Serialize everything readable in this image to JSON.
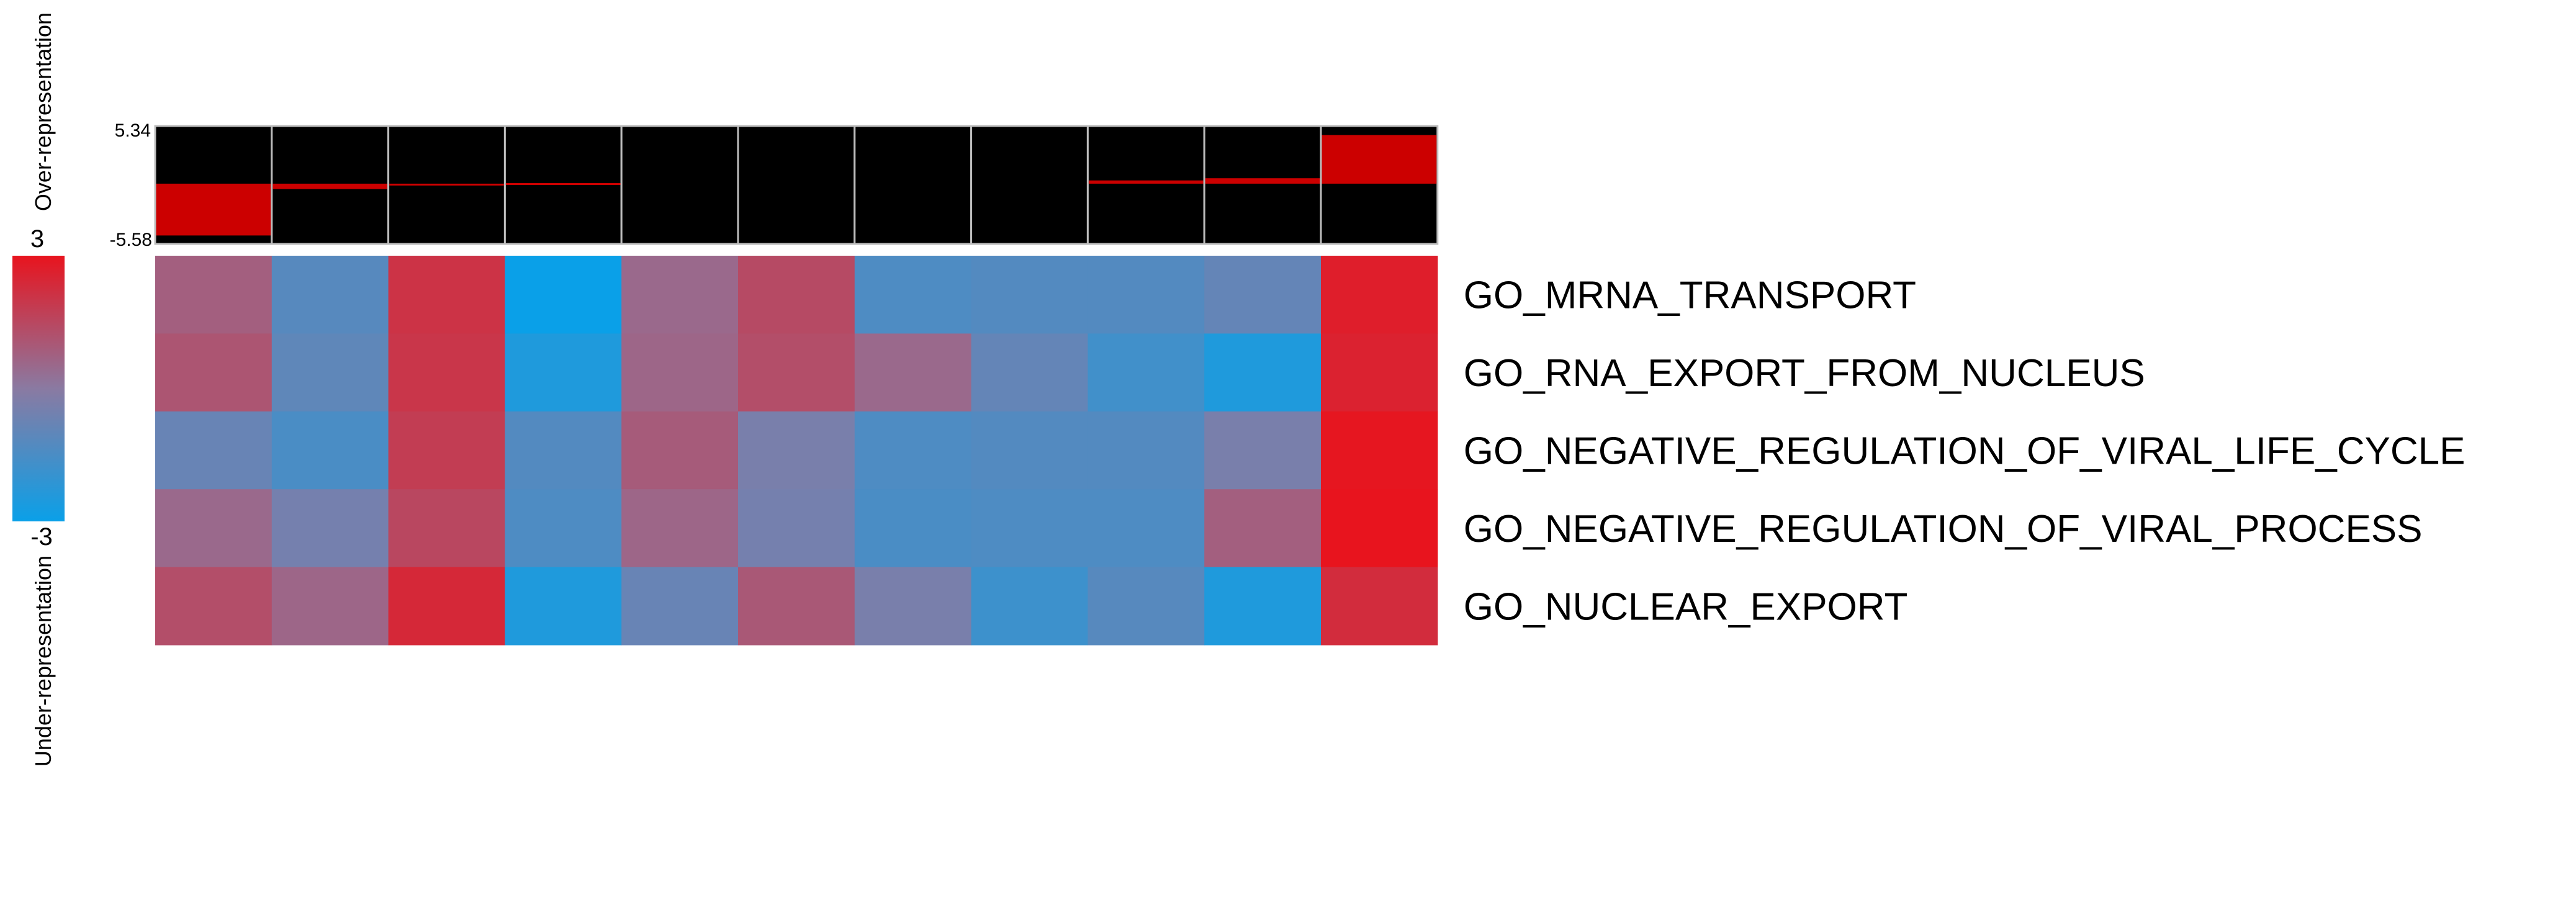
{
  "chart_data": {
    "type": "heatmap",
    "rows": [
      "GO_MRNA_TRANSPORT",
      "GO_RNA_EXPORT_FROM_NUCLEUS",
      "GO_NEGATIVE_REGULATION_OF_VIRAL_LIFE_CYCLE",
      "GO_NEGATIVE_REGULATION_OF_VIRAL_PROCESS",
      "GO_NUCLEAR_EXPORT"
    ],
    "columns": 11,
    "values": [
      [
        0.8,
        -1.2,
        2.1,
        -3.0,
        0.5,
        1.4,
        -1.4,
        -1.3,
        -1.3,
        -0.9,
        2.7
      ],
      [
        1.1,
        -1.0,
        2.0,
        -2.5,
        0.6,
        1.3,
        0.5,
        -0.9,
        -1.7,
        -2.5,
        2.6
      ],
      [
        -0.8,
        -1.5,
        1.8,
        -1.3,
        0.9,
        -0.4,
        -1.4,
        -1.3,
        -1.3,
        -0.4,
        2.95
      ],
      [
        0.5,
        -0.5,
        1.5,
        -1.4,
        0.6,
        -0.5,
        -1.5,
        -1.4,
        -1.4,
        0.8,
        3.0
      ],
      [
        1.3,
        0.6,
        2.4,
        -2.5,
        -0.8,
        1.0,
        -0.4,
        -1.8,
        -1.2,
        -2.5,
        2.3
      ]
    ],
    "color_scale": {
      "min": -3,
      "max": 3,
      "min_label": "-3",
      "max_label": "3",
      "low_color": "#0aa0e8",
      "mid_color": "#8a7aa2",
      "high_color": "#e8141e"
    },
    "bar_panel": {
      "ymax_label": "5.34",
      "ymin_label": "-5.58",
      "ylim": [
        -5.58,
        5.34
      ],
      "values": [
        -4.8,
        -0.5,
        -0.1,
        0.05,
        0,
        0,
        0,
        0,
        0.3,
        0.5,
        4.5
      ],
      "bar_color": "#cc0000",
      "background_color": "#000000"
    },
    "over_label": "Over-representation",
    "under_label": "Under-representation"
  }
}
